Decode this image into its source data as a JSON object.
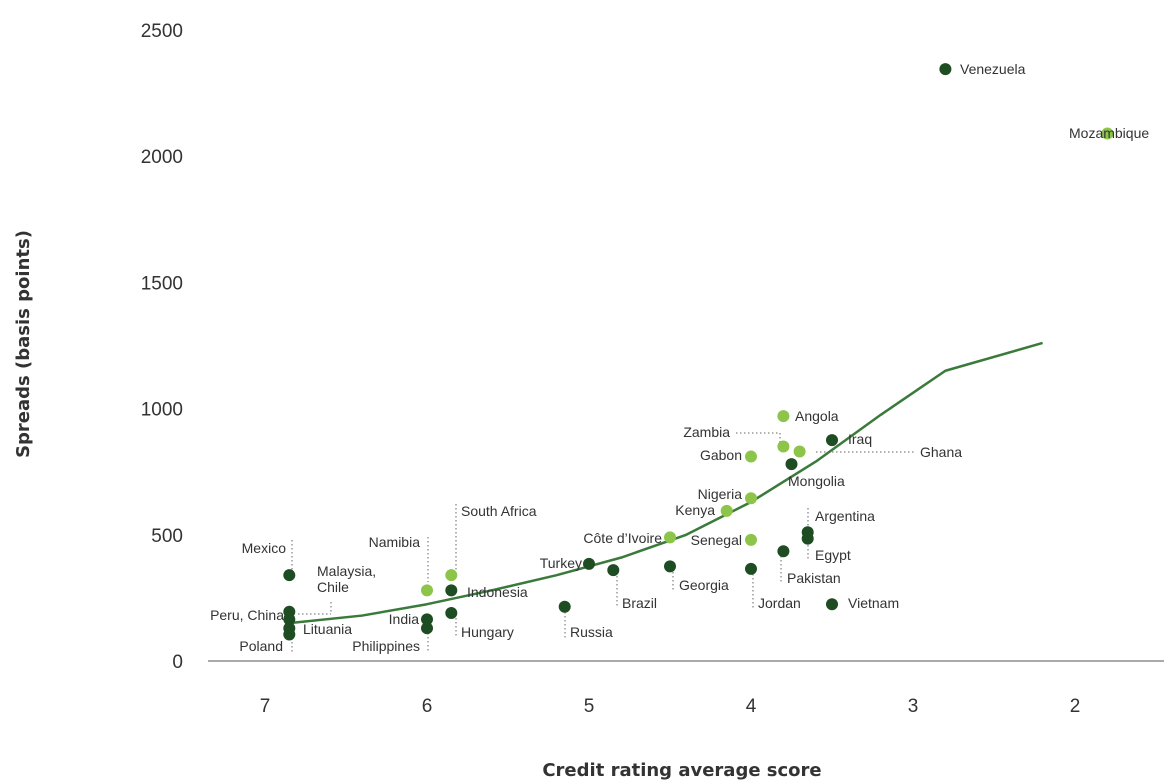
{
  "chart_data": {
    "type": "scatter",
    "xlabel": "Credit rating average score",
    "ylabel": "Spreads (basis points)",
    "xlim": [
      7.2,
      1.6
    ],
    "ylim": [
      0,
      2500
    ],
    "x_ticks": [
      7,
      6,
      5,
      4,
      3,
      2
    ],
    "y_ticks": [
      0,
      500,
      1000,
      1500,
      2000,
      2500
    ],
    "colors": {
      "dark": "#1e4d23",
      "light": "#8dc44a",
      "trend": "#3a7a3a",
      "axis": "#555555"
    },
    "trendline": {
      "type": "exponential",
      "points": [
        [
          6.8,
          155
        ],
        [
          6.0,
          230
        ],
        [
          5.0,
          380
        ],
        [
          4.5,
          500
        ],
        [
          4.0,
          680
        ],
        [
          3.5,
          910
        ],
        [
          3.0,
          1180
        ],
        [
          2.3,
          1250
        ]
      ]
    },
    "points": [
      {
        "label": "Venezuela",
        "x": 2.8,
        "y": 2345,
        "group": "dark"
      },
      {
        "label": "Mozambique",
        "x": 1.8,
        "y": 2090,
        "group": "light"
      },
      {
        "label": "Angola",
        "x": 3.8,
        "y": 970,
        "group": "light"
      },
      {
        "label": "Zambia",
        "x": 3.8,
        "y": 850,
        "group": "light"
      },
      {
        "label": "Iraq",
        "x": 3.5,
        "y": 875,
        "group": "dark"
      },
      {
        "label": "Gabon",
        "x": 4.0,
        "y": 810,
        "group": "light"
      },
      {
        "label": "Ghana",
        "x": 3.7,
        "y": 830,
        "group": "light"
      },
      {
        "label": "Mongolia",
        "x": 3.75,
        "y": 780,
        "group": "dark"
      },
      {
        "label": "Nigeria",
        "x": 4.0,
        "y": 645,
        "group": "light"
      },
      {
        "label": "Kenya",
        "x": 4.15,
        "y": 595,
        "group": "light"
      },
      {
        "label": "Argentina",
        "x": 3.65,
        "y": 510,
        "group": "dark"
      },
      {
        "label": "Côte d’Ivoire",
        "x": 4.5,
        "y": 490,
        "group": "light"
      },
      {
        "label": "Senegal",
        "x": 4.0,
        "y": 480,
        "group": "light"
      },
      {
        "label": "Egypt",
        "x": 3.65,
        "y": 485,
        "group": "dark"
      },
      {
        "label": "Pakistan",
        "x": 3.8,
        "y": 435,
        "group": "dark"
      },
      {
        "label": "Turkey",
        "x": 5.0,
        "y": 385,
        "group": "dark"
      },
      {
        "label": "Brazil",
        "x": 4.85,
        "y": 360,
        "group": "dark"
      },
      {
        "label": "Georgia",
        "x": 4.5,
        "y": 375,
        "group": "dark"
      },
      {
        "label": "Jordan",
        "x": 4.0,
        "y": 365,
        "group": "dark"
      },
      {
        "label": "Vietnam",
        "x": 3.5,
        "y": 225,
        "group": "dark"
      },
      {
        "label": "Russia",
        "x": 5.15,
        "y": 215,
        "group": "dark"
      },
      {
        "label": "South Africa",
        "x": 5.85,
        "y": 340,
        "group": "light"
      },
      {
        "label": "Namibia",
        "x": 6.0,
        "y": 280,
        "group": "light"
      },
      {
        "label": "Indonesia",
        "x": 5.85,
        "y": 280,
        "group": "dark"
      },
      {
        "label": "Hungary",
        "x": 5.85,
        "y": 190,
        "group": "dark"
      },
      {
        "label": "India",
        "x": 6.0,
        "y": 165,
        "group": "dark"
      },
      {
        "label": "Philippines",
        "x": 6.0,
        "y": 130,
        "group": "dark"
      },
      {
        "label": "Mexico",
        "x": 6.85,
        "y": 340,
        "group": "dark"
      },
      {
        "label": "Malaysia,\nChile",
        "x": 6.85,
        "y": 195,
        "group": "dark"
      },
      {
        "label": "Peru, China",
        "x": 6.85,
        "y": 165,
        "group": "dark"
      },
      {
        "label": "Lituania",
        "x": 6.85,
        "y": 130,
        "group": "dark"
      },
      {
        "label": "Poland",
        "x": 6.85,
        "y": 105,
        "group": "dark"
      }
    ]
  }
}
